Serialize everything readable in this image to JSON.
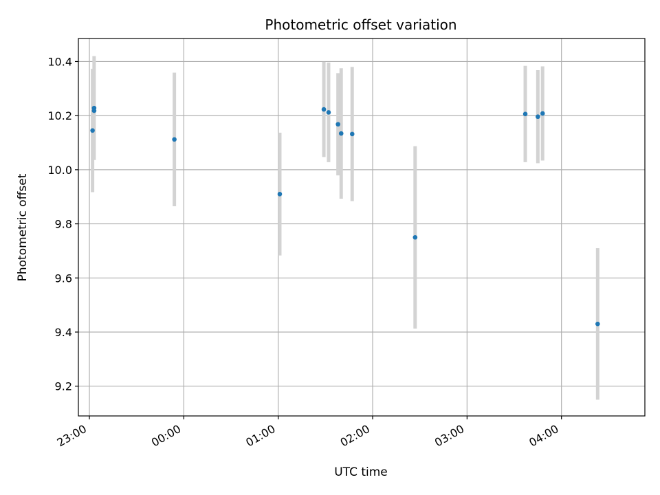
{
  "chart_data": {
    "type": "scatter",
    "title": "Photometric offset variation",
    "xlabel": "UTC time",
    "ylabel": "Photometric offset",
    "x_ticks": [
      "23:00",
      "00:00",
      "01:00",
      "02:00",
      "03:00",
      "04:00"
    ],
    "y_ticks": [
      "9.2",
      "9.4",
      "9.6",
      "9.8",
      "10.0",
      "10.2",
      "10.4"
    ],
    "xlim": [
      "22:53",
      "04:53"
    ],
    "ylim": [
      9.09,
      10.485
    ],
    "grid": true,
    "points": [
      {
        "x": "23:02",
        "y": 10.145,
        "err": 0.228
      },
      {
        "x": "23:03",
        "y": 10.218,
        "err": 0.0
      },
      {
        "x": "23:03",
        "y": 10.228,
        "err": 0.192
      },
      {
        "x": "23:54",
        "y": 10.112,
        "err": 0.247
      },
      {
        "x": "01:01",
        "y": 9.91,
        "err": 0.227
      },
      {
        "x": "01:29",
        "y": 10.223,
        "err": 0.176
      },
      {
        "x": "01:32",
        "y": 10.212,
        "err": 0.184
      },
      {
        "x": "01:38",
        "y": 10.168,
        "err": 0.189
      },
      {
        "x": "01:40",
        "y": 10.134,
        "err": 0.241
      },
      {
        "x": "01:47",
        "y": 10.132,
        "err": 0.248
      },
      {
        "x": "02:27",
        "y": 9.75,
        "err": 0.337
      },
      {
        "x": "03:37",
        "y": 10.206,
        "err": 0.178
      },
      {
        "x": "03:45",
        "y": 10.196,
        "err": 0.172
      },
      {
        "x": "03:48",
        "y": 10.208,
        "err": 0.174
      },
      {
        "x": "04:23",
        "y": 9.43,
        "err": 0.28
      }
    ],
    "colors": {
      "marker": "#1f77b4",
      "errorbar": "#d3d3d3",
      "grid": "#b0b0b0",
      "axes": "#000000"
    }
  }
}
